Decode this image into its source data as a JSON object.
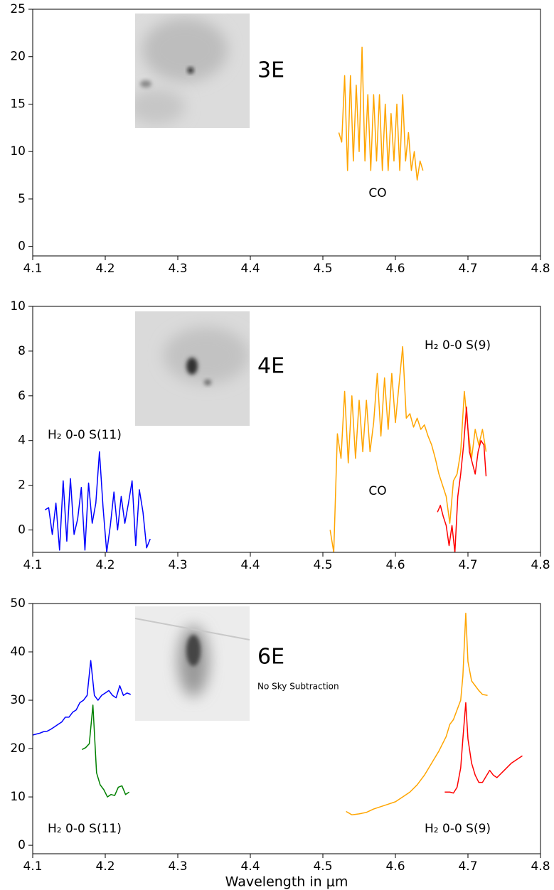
{
  "chart_data": [
    {
      "type": "line",
      "annotations": [
        "3E",
        "CO"
      ],
      "xlim": [
        4.1,
        4.8
      ],
      "xticks": [
        4.1,
        4.2,
        4.3,
        4.4,
        4.5,
        4.6,
        4.7,
        4.8
      ],
      "ylim": [
        -1,
        25
      ],
      "yticks": [
        0,
        5,
        10,
        15,
        20,
        25
      ],
      "series": [
        {
          "color": "#ffa500",
          "x": [
            4.522,
            4.526,
            4.53,
            4.534,
            4.538,
            4.542,
            4.546,
            4.55,
            4.554,
            4.558,
            4.562,
            4.566,
            4.57,
            4.574,
            4.578,
            4.582,
            4.586,
            4.59,
            4.594,
            4.598,
            4.602,
            4.606,
            4.61,
            4.614,
            4.618,
            4.622,
            4.626,
            4.63,
            4.634,
            4.638
          ],
          "values": [
            12,
            11,
            18,
            8,
            18,
            9,
            17,
            10,
            21,
            9,
            16,
            8,
            16,
            9,
            16,
            8,
            15,
            8,
            14,
            9,
            15,
            8,
            16,
            9,
            12,
            8,
            10,
            7,
            9,
            8
          ]
        }
      ]
    },
    {
      "type": "line",
      "annotations": [
        "4E",
        "H₂ 0-0 S(9)",
        "H₂ 0-0 S(11)",
        "CO"
      ],
      "xlim": [
        4.1,
        4.8
      ],
      "xticks": [
        4.1,
        4.2,
        4.3,
        4.4,
        4.5,
        4.6,
        4.7,
        4.8
      ],
      "ylim": [
        -1,
        10
      ],
      "yticks": [
        0,
        2,
        4,
        6,
        8,
        10
      ],
      "series": [
        {
          "color": "#ffa500",
          "x": [
            4.51,
            4.515,
            4.52,
            4.525,
            4.53,
            4.535,
            4.54,
            4.545,
            4.55,
            4.555,
            4.56,
            4.565,
            4.57,
            4.575,
            4.58,
            4.585,
            4.59,
            4.595,
            4.6,
            4.605,
            4.61,
            4.615,
            4.62,
            4.625,
            4.63,
            4.635,
            4.64,
            4.645,
            4.65,
            4.655,
            4.66,
            4.665,
            4.67,
            4.675,
            4.68,
            4.685,
            4.69,
            4.695,
            4.7,
            4.705,
            4.71,
            4.715,
            4.72,
            4.725
          ],
          "values": [
            0,
            -1,
            4.3,
            3.2,
            6.2,
            3,
            6,
            3.2,
            5.8,
            3.5,
            5.8,
            3.5,
            4.8,
            7,
            4.2,
            6.8,
            4.5,
            7,
            4.8,
            6.5,
            8.2,
            5,
            5.2,
            4.6,
            5,
            4.5,
            4.7,
            4.2,
            3.8,
            3.2,
            2.5,
            2,
            1.5,
            0.3,
            2.2,
            2.5,
            3.5,
            6.2,
            4.5,
            3.2,
            4.5,
            3.8,
            4.5,
            3.5
          ]
        },
        {
          "color": "#ff0000",
          "x": [
            4.658,
            4.662,
            4.666,
            4.67,
            4.674,
            4.678,
            4.682,
            4.686,
            4.69,
            4.694,
            4.698,
            4.702,
            4.706,
            4.71,
            4.714,
            4.718,
            4.722,
            4.725
          ],
          "values": [
            0.8,
            1.1,
            0.6,
            0.2,
            -0.7,
            0.2,
            -1,
            1.5,
            2.5,
            3.8,
            5.5,
            3.5,
            3,
            2.5,
            3.5,
            4,
            3.8,
            2.4
          ]
        },
        {
          "color": "#0000ff",
          "x": [
            4.117,
            4.122,
            4.127,
            4.132,
            4.137,
            4.142,
            4.147,
            4.152,
            4.157,
            4.162,
            4.167,
            4.172,
            4.177,
            4.182,
            4.187,
            4.192,
            4.197,
            4.202,
            4.207,
            4.212,
            4.217,
            4.222,
            4.227,
            4.232,
            4.237,
            4.242,
            4.247,
            4.252,
            4.257,
            4.262
          ],
          "values": [
            0.9,
            1,
            -0.2,
            1.2,
            -0.9,
            2.2,
            -0.5,
            2.3,
            -0.2,
            0.5,
            1.9,
            -0.9,
            2.1,
            0.3,
            1.2,
            3.5,
            1,
            -1,
            0.2,
            1.7,
            0,
            1.5,
            0.3,
            1.2,
            2.2,
            -0.7,
            1.8,
            0.8,
            -0.8,
            -0.4
          ]
        }
      ]
    },
    {
      "type": "line",
      "annotations": [
        "6E",
        "No Sky Subtraction",
        "H₂ 0-0 S(11)",
        "H₂ 0-0 S(9)"
      ],
      "xlabel": "Wavelength in μm",
      "xlim": [
        4.1,
        4.8
      ],
      "xticks": [
        4.1,
        4.2,
        4.3,
        4.4,
        4.5,
        4.6,
        4.7,
        4.8
      ],
      "ylim": [
        -1.75,
        50
      ],
      "yticks": [
        0,
        10,
        20,
        30,
        40,
        50
      ],
      "series": [
        {
          "color": "#0000ff",
          "x": [
            4.1,
            4.105,
            4.11,
            4.115,
            4.12,
            4.125,
            4.13,
            4.135,
            4.14,
            4.145,
            4.15,
            4.155,
            4.16,
            4.165,
            4.17,
            4.175,
            4.18,
            4.185,
            4.19,
            4.195,
            4.2,
            4.205,
            4.21,
            4.215,
            4.22,
            4.225,
            4.23,
            4.235
          ],
          "values": [
            22.8,
            23,
            23.2,
            23.5,
            23.6,
            24,
            24.5,
            25,
            25.5,
            26.5,
            26.5,
            27.5,
            28,
            29.5,
            30,
            31,
            38.2,
            31,
            30,
            31,
            31.5,
            32,
            31,
            30.5,
            33,
            31,
            31.5,
            31.2
          ]
        },
        {
          "color": "#008000",
          "x": [
            4.168,
            4.173,
            4.178,
            4.183,
            4.188,
            4.193,
            4.198,
            4.203,
            4.208,
            4.213,
            4.218,
            4.223,
            4.228,
            4.233
          ],
          "values": [
            19.8,
            20.2,
            21,
            29,
            15,
            12.5,
            11.5,
            10,
            10.5,
            10.3,
            12,
            12.3,
            10.5,
            11
          ]
        },
        {
          "color": "#ffa500",
          "x": [
            4.532,
            4.54,
            4.55,
            4.56,
            4.57,
            4.58,
            4.59,
            4.6,
            4.61,
            4.62,
            4.63,
            4.64,
            4.65,
            4.66,
            4.67,
            4.675,
            4.68,
            4.685,
            4.69,
            4.693,
            4.697,
            4.7,
            4.705,
            4.71,
            4.715,
            4.72,
            4.727
          ],
          "values": [
            7,
            6.3,
            6.5,
            6.8,
            7.5,
            8,
            8.5,
            9,
            10,
            11,
            12.5,
            14.5,
            17,
            19.5,
            22.5,
            25,
            26,
            28,
            30,
            35,
            48,
            38,
            34,
            33,
            32,
            31.2,
            31
          ]
        },
        {
          "color": "#ff0000",
          "x": [
            4.668,
            4.675,
            4.68,
            4.685,
            4.69,
            4.693,
            4.697,
            4.7,
            4.705,
            4.71,
            4.715,
            4.72,
            4.73,
            4.735,
            4.74,
            4.75,
            4.76,
            4.77,
            4.775
          ],
          "values": [
            11,
            11,
            10.8,
            12,
            16,
            22,
            29.5,
            22,
            17,
            14.5,
            13,
            13,
            15.5,
            14.5,
            14,
            15.5,
            17,
            18,
            18.5
          ]
        }
      ]
    }
  ]
}
